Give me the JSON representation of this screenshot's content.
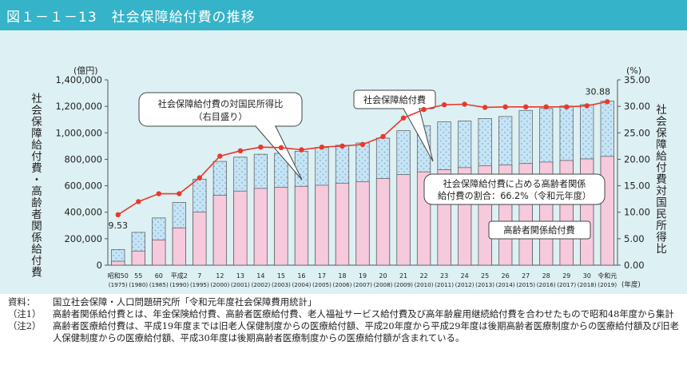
{
  "title": "図１－１－13　社会保障給付費の推移",
  "colors": {
    "title_bar": "#35b3c8",
    "panel_bg": "#ddf0f3",
    "bar_total": "#c6e4f4",
    "bar_elderly": "#f6c9dc",
    "line": "#e8392c",
    "dots": "#7db1d6"
  },
  "chart_data": {
    "type": "bar",
    "categories": [
      "昭和50",
      "55",
      "60",
      "平成2",
      "7",
      "12",
      "13",
      "14",
      "15",
      "16",
      "17",
      "18",
      "19",
      "20",
      "21",
      "22",
      "23",
      "24",
      "25",
      "26",
      "27",
      "28",
      "29",
      "30",
      "令和元"
    ],
    "categories_year": [
      "(1975)",
      "(1980)",
      "(1985)",
      "(1990)",
      "(1995)",
      "(2000)",
      "(2001)",
      "(2002)",
      "(2003)",
      "(2004)",
      "(2005)",
      "(2006)",
      "(2007)",
      "(2008)",
      "(2009)",
      "(2010)",
      "(2011)",
      "(2012)",
      "(2013)",
      "(2014)",
      "(2015)",
      "(2016)",
      "(2017)",
      "(2018)",
      "(2019)"
    ],
    "xlabel_unit": "(年度)",
    "series": [
      {
        "name": "社会保障給付費",
        "type": "bar",
        "axis": "left",
        "values": [
          118000,
          248000,
          357000,
          474000,
          650000,
          784000,
          816000,
          838000,
          845000,
          859000,
          889000,
          906000,
          923000,
          960000,
          1016000,
          1053000,
          1083000,
          1089000,
          1108000,
          1123000,
          1169000,
          1184000,
          1202000,
          1213000,
          1239000
        ]
      },
      {
        "name": "高齢者関係給付費",
        "type": "bar",
        "axis": "left",
        "values": [
          30000,
          107000,
          191000,
          282000,
          401000,
          529000,
          560000,
          580000,
          588000,
          596000,
          604000,
          620000,
          630000,
          654000,
          684000,
          705000,
          721000,
          737000,
          751000,
          758000,
          768000,
          779000,
          791000,
          803000,
          822000
        ]
      },
      {
        "name": "社会保障給付費の対国民所得比",
        "type": "line",
        "axis": "right",
        "values": [
          9.53,
          12.0,
          13.5,
          13.5,
          16.5,
          20.6,
          21.6,
          22.3,
          22.2,
          21.8,
          22.3,
          22.5,
          22.8,
          24.3,
          27.8,
          29.4,
          30.3,
          30.4,
          29.8,
          29.9,
          29.9,
          29.9,
          29.9,
          30.1,
          30.88
        ]
      }
    ],
    "left_axis": {
      "unit": "(億円)",
      "label": "社会保障給付費・高齢者関係給付費",
      "ylim": [
        0,
        1400000
      ],
      "ticks": [
        "0",
        "200,000",
        "400,000",
        "600,000",
        "800,000",
        "1,000,000",
        "1,200,000",
        "1,400,000"
      ]
    },
    "right_axis": {
      "unit": "(%)",
      "label": "社会保障給付費対国民所得比",
      "ylim": [
        0,
        35
      ],
      "ticks": [
        "0.00",
        "5.00",
        "10.00",
        "15.00",
        "20.00",
        "25.00",
        "30.00",
        "35.00"
      ]
    },
    "annotations": {
      "first_point": "9.53",
      "last_point": "30.88",
      "callout_ratio_line1": "社会保障給付費の対国民所得比",
      "callout_ratio_line2": "（右目盛り）",
      "callout_total": "社会保障給付費",
      "callout_share_line1": "社会保障給付費に占める高齢者関係",
      "callout_share_line2": "給付費の割合：66.2%（令和元年度）",
      "callout_elderly": "高齢者関係給付費"
    }
  },
  "notes": [
    {
      "label": "資料：",
      "text": "国立社会保障・人口問題研究所「令和元年度社会保障費用統計」"
    },
    {
      "label": "（注1）",
      "text": "高齢者関係給付費とは、年金保険給付費、高齢者医療給付費、老人福祉サービス給付費及び高年齢雇用継続給付費を合わせたもので昭和48年度から集計"
    },
    {
      "label": "（注2）",
      "text": "高齢者医療給付費は、平成19年度までは旧老人保健制度からの医療給付額、平成20年度から平成29年度は後期高齢者医療制度からの医療給付額及び旧老人保健制度からの医療給付額、平成30年度は後期高齢者医療制度からの医療給付額が含まれている。"
    }
  ]
}
